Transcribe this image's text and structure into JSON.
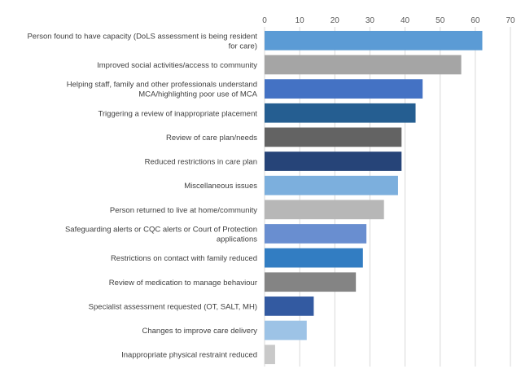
{
  "chart_data": {
    "type": "bar",
    "orientation": "horizontal",
    "title": "",
    "xlabel": "",
    "ylabel": "",
    "xlim": [
      0,
      70
    ],
    "ticks": [
      0,
      10,
      20,
      30,
      40,
      50,
      60,
      70
    ],
    "axis_position": "top",
    "grid": true,
    "categories": [
      [
        "Person found to have capacity (DoLS assessment is being resident",
        "for care)"
      ],
      [
        "Improved social activities/access to community"
      ],
      [
        "Helping staff, family and other professionals understand",
        "MCA/highlighting poor use of MCA"
      ],
      [
        "Triggering a review of inappropriate placement"
      ],
      [
        "Review of care plan/needs"
      ],
      [
        "Reduced restrictions in care plan"
      ],
      [
        "Miscellaneous issues"
      ],
      [
        "Person returned to live at home/community"
      ],
      [
        "Safeguarding alerts or CQC alerts or Court of Protection",
        "applications"
      ],
      [
        "Restrictions on contact with family reduced"
      ],
      [
        "Review of medication to manage behaviour"
      ],
      [
        "Specialist assessment requested (OT, SALT, MH)"
      ],
      [
        "Changes to improve care delivery"
      ],
      [
        "Inappropriate physical restraint reduced"
      ]
    ],
    "values": [
      62,
      56,
      45,
      43,
      39,
      39,
      38,
      34,
      29,
      28,
      26,
      14,
      12,
      3
    ],
    "colors": [
      "#5b9bd5",
      "#a5a5a5",
      "#4472c4",
      "#255e91",
      "#636363",
      "#264478",
      "#7cafdd",
      "#b7b7b7",
      "#698ed0",
      "#327dc2",
      "#848484",
      "#335aa1",
      "#9dc3e6",
      "#c9c9c9"
    ]
  }
}
